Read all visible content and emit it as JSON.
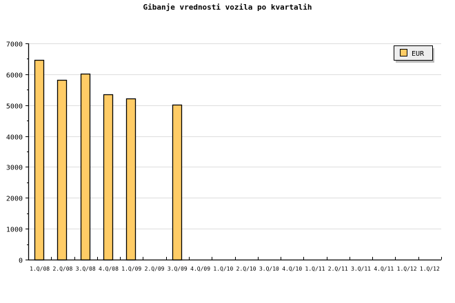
{
  "chart_data": {
    "type": "bar",
    "title": "Gibanje vrednosti vozila po kvartalih",
    "categories": [
      "1.Q/08",
      "2.Q/08",
      "3.Q/08",
      "4.Q/08",
      "1.Q/09",
      "2.Q/09",
      "3.Q/09",
      "4.Q/09",
      "1.Q/10",
      "2.Q/10",
      "3.Q/10",
      "4.Q/10",
      "1.Q/11",
      "2.Q/11",
      "3.Q/11",
      "4.Q/11",
      "1.Q/12",
      "1.Q/12"
    ],
    "series": [
      {
        "name": "EUR",
        "values": [
          6460,
          5820,
          6020,
          5350,
          5220,
          null,
          5020,
          null,
          null,
          null,
          null,
          null,
          null,
          null,
          null,
          null,
          null,
          null
        ]
      }
    ],
    "ylim": [
      0,
      7000
    ],
    "yticks": [
      0,
      1000,
      2000,
      3000,
      4000,
      5000,
      6000,
      7000
    ],
    "grid": true,
    "legend": "top-right",
    "colors": {
      "bar": "#ffcc66",
      "grid": "#dddddd",
      "legend_bg": "#eeeeee"
    }
  }
}
